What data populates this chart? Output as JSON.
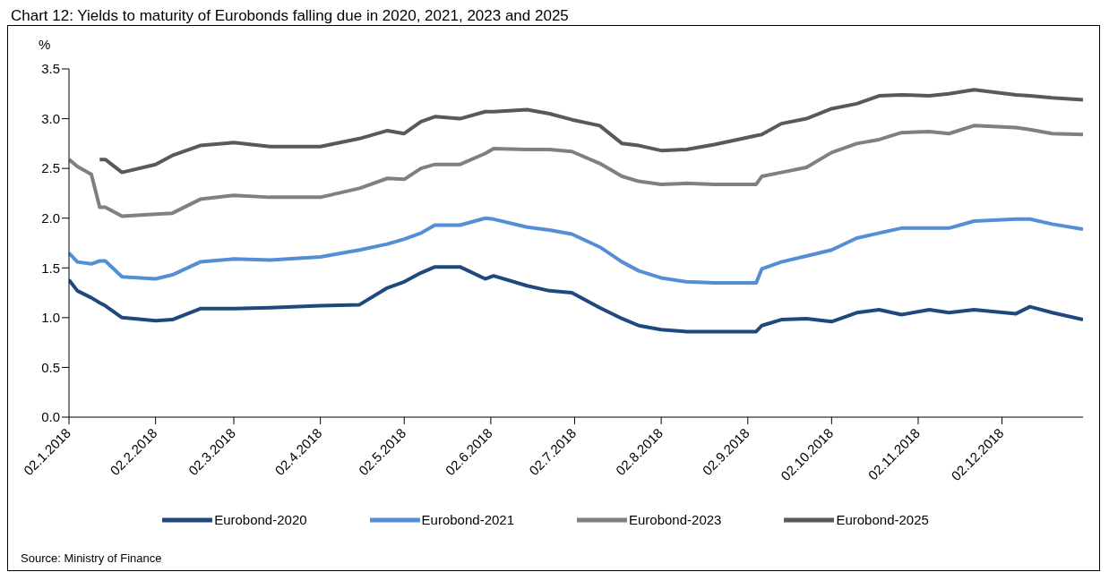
{
  "chart_data": {
    "type": "line",
    "title": "Chart 12: Yields to maturity of Eurobonds falling due in 2020, 2021, 2023 and 2025",
    "ylabel": "%",
    "annotations": [
      "Source: Ministry of Finance"
    ],
    "x": [
      "2018-01-02",
      "2018-01-05",
      "2018-01-10",
      "2018-01-13",
      "2018-01-15",
      "2018-01-21",
      "2018-02-02",
      "2018-02-08",
      "2018-02-18",
      "2018-03-02",
      "2018-03-15",
      "2018-04-02",
      "2018-04-16",
      "2018-04-26",
      "2018-05-02",
      "2018-05-08",
      "2018-05-13",
      "2018-05-22",
      "2018-05-31",
      "2018-06-03",
      "2018-06-15",
      "2018-06-23",
      "2018-07-01",
      "2018-07-11",
      "2018-07-19",
      "2018-07-25",
      "2018-08-02",
      "2018-08-11",
      "2018-08-21",
      "2018-09-05",
      "2018-09-07",
      "2018-09-14",
      "2018-09-23",
      "2018-10-02",
      "2018-10-11",
      "2018-10-19",
      "2018-10-27",
      "2018-11-06",
      "2018-11-13",
      "2018-11-22",
      "2018-12-07",
      "2018-12-12",
      "2018-12-20",
      "2018-12-31"
    ],
    "series": [
      {
        "name": "Eurobond-2020",
        "color": "#1f497d",
        "values": [
          1.38,
          1.27,
          1.2,
          1.15,
          1.12,
          1.0,
          0.97,
          0.98,
          1.09,
          1.09,
          1.1,
          1.12,
          1.13,
          1.3,
          1.36,
          1.45,
          1.51,
          1.51,
          1.39,
          1.42,
          1.32,
          1.27,
          1.25,
          1.1,
          0.99,
          0.92,
          0.88,
          0.86,
          0.86,
          0.86,
          0.92,
          0.98,
          0.99,
          0.96,
          1.05,
          1.08,
          1.03,
          1.08,
          1.05,
          1.08,
          1.04,
          1.11,
          1.05,
          0.98
        ]
      },
      {
        "name": "Eurobond-2021",
        "color": "#558ed5",
        "values": [
          1.65,
          1.56,
          1.54,
          1.57,
          1.57,
          1.41,
          1.39,
          1.43,
          1.56,
          1.59,
          1.58,
          1.61,
          1.68,
          1.74,
          1.79,
          1.85,
          1.93,
          1.93,
          2.0,
          1.99,
          1.91,
          1.88,
          1.84,
          1.71,
          1.56,
          1.47,
          1.4,
          1.36,
          1.35,
          1.35,
          1.49,
          1.56,
          1.62,
          1.68,
          1.8,
          1.85,
          1.9,
          1.9,
          1.9,
          1.97,
          1.99,
          1.99,
          1.94,
          1.89
        ]
      },
      {
        "name": "Eurobond-2023",
        "color": "#808080",
        "values": [
          2.59,
          2.52,
          2.44,
          2.11,
          2.11,
          2.02,
          2.04,
          2.05,
          2.19,
          2.23,
          2.21,
          2.21,
          2.3,
          2.4,
          2.39,
          2.5,
          2.54,
          2.54,
          2.65,
          2.7,
          2.69,
          2.69,
          2.67,
          2.55,
          2.42,
          2.37,
          2.34,
          2.35,
          2.34,
          2.34,
          2.42,
          2.46,
          2.51,
          2.66,
          2.75,
          2.79,
          2.86,
          2.87,
          2.85,
          2.93,
          2.91,
          2.89,
          2.85,
          2.84
        ]
      },
      {
        "name": "Eurobond-2025",
        "color": "#595959",
        "values": [
          null,
          null,
          null,
          2.59,
          2.59,
          2.46,
          2.54,
          2.63,
          2.73,
          2.76,
          2.72,
          2.72,
          2.8,
          2.88,
          2.85,
          2.97,
          3.02,
          3.0,
          3.07,
          3.07,
          3.09,
          3.05,
          2.99,
          2.93,
          2.75,
          2.73,
          2.68,
          2.69,
          2.74,
          2.83,
          2.84,
          2.95,
          3.0,
          3.1,
          3.15,
          3.23,
          3.24,
          3.23,
          3.25,
          3.29,
          3.24,
          3.23,
          3.21,
          3.19
        ]
      }
    ],
    "xlim": [
      "2018-01-02",
      "2018-12-31"
    ],
    "xticks": [
      {
        "value": "2018-01-02",
        "label": "02.1.2018"
      },
      {
        "value": "2018-02-02",
        "label": "02.2.2018"
      },
      {
        "value": "2018-03-02",
        "label": "02.3.2018"
      },
      {
        "value": "2018-04-02",
        "label": "02.4.2018"
      },
      {
        "value": "2018-05-02",
        "label": "02.5.2018"
      },
      {
        "value": "2018-06-02",
        "label": "02.6.2018"
      },
      {
        "value": "2018-07-02",
        "label": "02.7.2018"
      },
      {
        "value": "2018-08-02",
        "label": "02.8.2018"
      },
      {
        "value": "2018-09-02",
        "label": "02.9.2018"
      },
      {
        "value": "2018-10-02",
        "label": "02.10.2018"
      },
      {
        "value": "2018-11-02",
        "label": "02.11.2018"
      },
      {
        "value": "2018-12-02",
        "label": "02.12.2018"
      }
    ],
    "ylim": [
      0,
      3.5
    ],
    "yticks": [
      {
        "value": 0,
        "label": "0.0"
      },
      {
        "value": 0.5,
        "label": "0.5"
      },
      {
        "value": 1,
        "label": "1.0"
      },
      {
        "value": 1.5,
        "label": "1.5"
      },
      {
        "value": 2,
        "label": "2.0"
      },
      {
        "value": 2.5,
        "label": "2.5"
      },
      {
        "value": 3,
        "label": "3.0"
      },
      {
        "value": 3.5,
        "label": "3.5"
      }
    ],
    "grid": false,
    "legend": "bottom",
    "marker": "none",
    "line_style": "solid"
  }
}
